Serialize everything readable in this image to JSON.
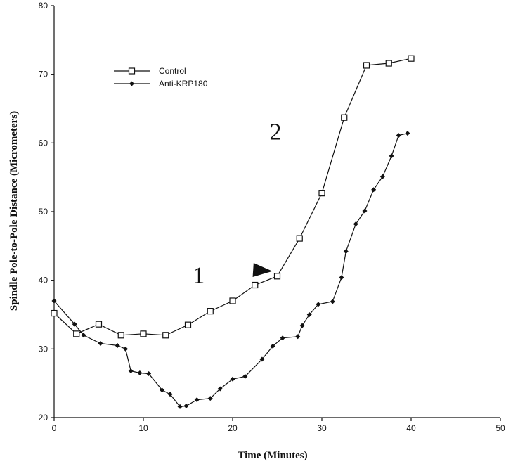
{
  "chart_data": {
    "type": "line",
    "title": "",
    "xlabel": "Time (Minutes)",
    "ylabel": "Spindle Pole-to-Pole Distance (Micrometers)",
    "xlim": [
      0,
      50
    ],
    "ylim": [
      20,
      80
    ],
    "xticks": [
      0,
      10,
      20,
      30,
      40,
      50
    ],
    "yticks": [
      20,
      30,
      40,
      50,
      60,
      70,
      80
    ],
    "grid": false,
    "legend_position": "top-left",
    "series": [
      {
        "name": "Control",
        "marker": "open-square",
        "color": "#111111",
        "x": [
          0,
          2.5,
          5,
          7.5,
          10,
          12.5,
          15,
          17.5,
          20,
          22.5,
          25,
          27.5,
          30,
          32.5,
          35,
          37.5,
          40
        ],
        "y": [
          35.2,
          32.2,
          33.6,
          32.0,
          32.2,
          32.0,
          33.5,
          35.5,
          37.0,
          39.3,
          40.6,
          46.1,
          52.7,
          63.7,
          71.3,
          71.6,
          72.3
        ]
      },
      {
        "name": "Anti-KRP180",
        "marker": "filled-diamond",
        "color": "#111111",
        "x": [
          0,
          2.3,
          3.3,
          5.2,
          7.1,
          8.0,
          8.6,
          9.6,
          10.6,
          12.1,
          13.0,
          14.1,
          14.8,
          16.0,
          17.5,
          18.6,
          20.0,
          21.4,
          23.3,
          24.5,
          25.6,
          27.3,
          27.8,
          28.6,
          29.6,
          31.2,
          32.2,
          32.7,
          33.8,
          34.8,
          35.8,
          36.8,
          37.8,
          38.6,
          39.6
        ],
        "y": [
          37.0,
          33.6,
          32.0,
          30.8,
          30.5,
          30.0,
          26.8,
          26.5,
          26.4,
          24.0,
          23.4,
          21.6,
          21.7,
          22.6,
          22.8,
          24.2,
          25.6,
          26.0,
          28.5,
          30.4,
          31.6,
          31.8,
          33.4,
          35.0,
          36.5,
          36.9,
          40.4,
          44.2,
          48.2,
          50.1,
          53.2,
          55.1,
          58.1,
          61.1,
          61.4
        ]
      }
    ],
    "annotations": [
      {
        "text": "1",
        "x": 16.2,
        "y": 39.6
      },
      {
        "text": "2",
        "x": 24.8,
        "y": 60.5
      }
    ],
    "arrow": {
      "marker": "arrowhead",
      "x": 22.3,
      "y": 41.5,
      "points_to": [
        25,
        40.6
      ]
    }
  }
}
